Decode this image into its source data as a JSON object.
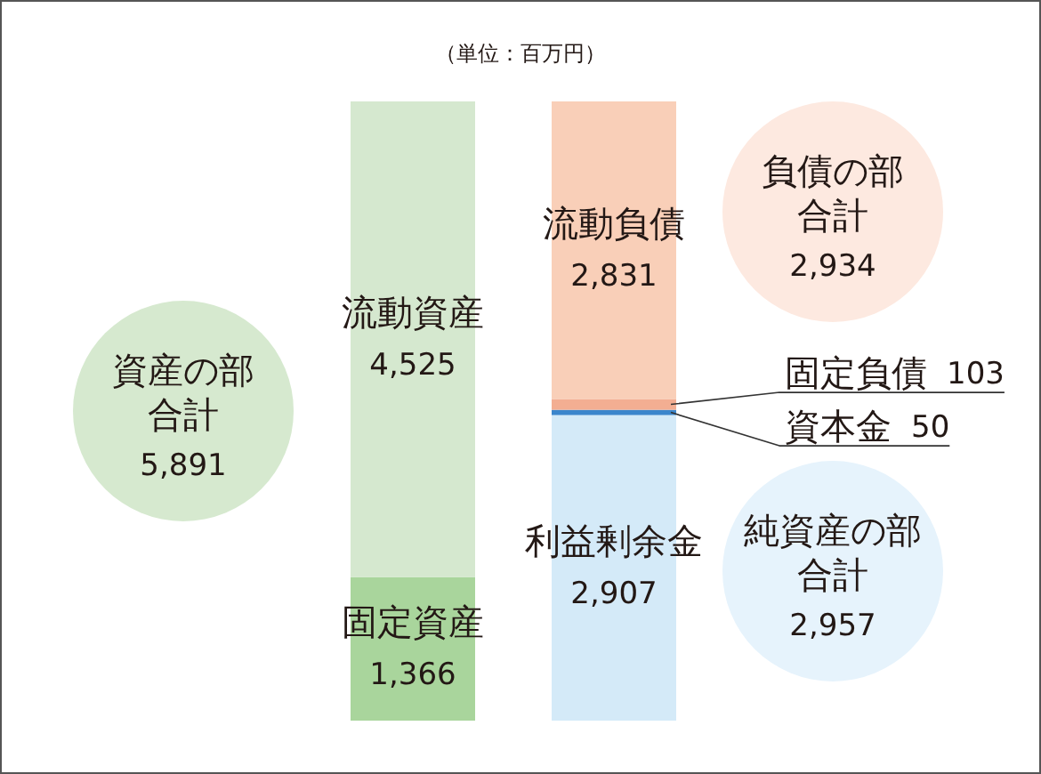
{
  "chart_data": {
    "type": "bar",
    "stacked": true,
    "categories": [
      null,
      null
    ],
    "series": [
      {
        "name": "固定資産",
        "color": "#a9d59c",
        "values": [
          1366,
          null
        ],
        "value_labels": [
          "1,366",
          null
        ]
      },
      {
        "name": "流動資産",
        "color": "#d5e8cf",
        "values": [
          4525,
          null
        ],
        "value_labels": [
          "4,525",
          null
        ]
      },
      {
        "name": "利益剰余金",
        "color": "#d4eaf8",
        "values": [
          null,
          2907
        ],
        "value_labels": [
          null,
          "2,907"
        ]
      },
      {
        "name": "資本金",
        "color": "#3b86cc",
        "values": [
          null,
          50
        ],
        "value_labels": [
          null,
          "50"
        ]
      },
      {
        "name": "固定負債",
        "color": "#f3ae92",
        "values": [
          null,
          103
        ],
        "value_labels": [
          null,
          "103"
        ]
      },
      {
        "name": "流動負債",
        "color": "#f9cfb8",
        "values": [
          null,
          2831
        ],
        "value_labels": [
          null,
          "2,831"
        ]
      }
    ],
    "annotations": [
      "（単位：百万円）",
      "資産の部合計",
      "5,891",
      "負債の部合計",
      "2,934",
      "純資産の部合計",
      "2,957"
    ]
  }
}
